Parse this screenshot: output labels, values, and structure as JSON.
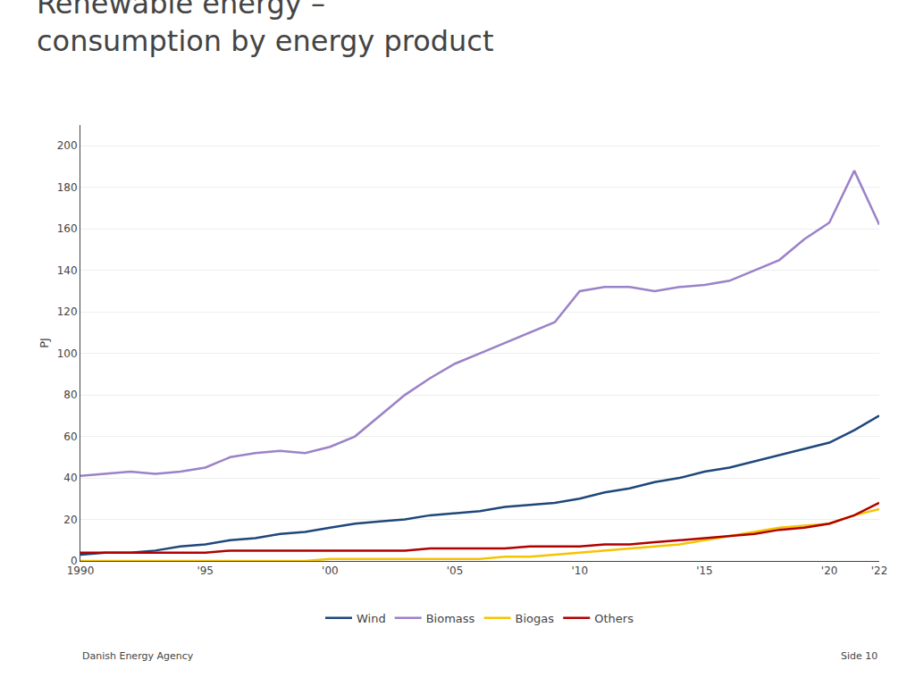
{
  "chart_data": {
    "type": "line",
    "title": "Renewable energy –\nconsumption by energy product",
    "ylabel": "PJ",
    "annotations": [
      "Danish Energy Agency",
      "Side 10"
    ],
    "x": [
      1990,
      1991,
      1992,
      1993,
      1994,
      1995,
      1996,
      1997,
      1998,
      1999,
      2000,
      2001,
      2002,
      2003,
      2004,
      2005,
      2006,
      2007,
      2008,
      2009,
      2010,
      2011,
      2012,
      2013,
      2014,
      2015,
      2016,
      2017,
      2018,
      2019,
      2020,
      2021,
      2022
    ],
    "series": [
      {
        "name": "Wind",
        "color": "#1F477A",
        "values": [
          3,
          4,
          4,
          5,
          7,
          8,
          10,
          11,
          13,
          14,
          16,
          18,
          19,
          20,
          22,
          23,
          24,
          26,
          27,
          28,
          30,
          33,
          35,
          38,
          40,
          43,
          45,
          48,
          51,
          54,
          57,
          63,
          70
        ]
      },
      {
        "name": "Biomass",
        "color": "#9B82C8",
        "values": [
          41,
          42,
          43,
          42,
          43,
          45,
          50,
          52,
          53,
          52,
          55,
          60,
          70,
          80,
          88,
          95,
          100,
          105,
          110,
          115,
          130,
          132,
          132,
          130,
          132,
          133,
          135,
          140,
          145,
          155,
          163,
          188,
          162
        ]
      },
      {
        "name": "Biogas",
        "color": "#F5C400",
        "values": [
          0,
          0,
          0,
          0,
          0,
          0,
          0,
          0,
          0,
          0,
          1,
          1,
          1,
          1,
          1,
          1,
          1,
          2,
          2,
          3,
          4,
          5,
          6,
          7,
          8,
          10,
          12,
          14,
          16,
          17,
          18,
          22,
          25
        ]
      },
      {
        "name": "Others",
        "color": "#B00000",
        "values": [
          4,
          4,
          4,
          4,
          4,
          4,
          5,
          5,
          5,
          5,
          5,
          5,
          5,
          5,
          6,
          6,
          6,
          6,
          7,
          7,
          7,
          8,
          8,
          9,
          10,
          11,
          12,
          13,
          15,
          16,
          18,
          22,
          28
        ]
      }
    ],
    "xlim": [
      1990,
      2022
    ],
    "xticks": [
      1990,
      {
        "value": 1995,
        "label": "'95"
      },
      {
        "value": 2000,
        "label": "'00"
      },
      {
        "value": 2005,
        "label": "'05"
      },
      {
        "value": 2010,
        "label": "'10"
      },
      {
        "value": 2015,
        "label": "'15"
      },
      {
        "value": 2020,
        "label": "'20"
      },
      {
        "value": 2022,
        "label": "'22"
      }
    ],
    "ylim": [
      0,
      210
    ],
    "yticks": [
      0,
      20,
      40,
      60,
      80,
      100,
      120,
      140,
      160,
      180,
      200
    ],
    "grid": "y",
    "legend": "bottom"
  }
}
